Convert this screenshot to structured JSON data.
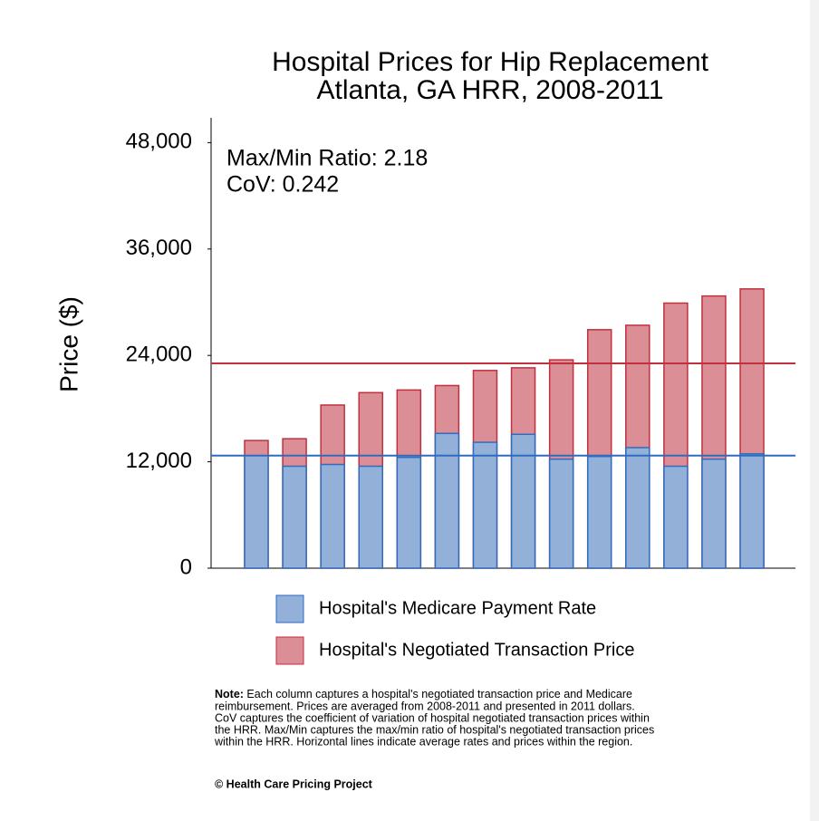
{
  "chart_data": {
    "type": "bar",
    "title": [
      "Hospital Prices for Hip Replacement",
      "Atlanta, GA HRR, 2008-2011"
    ],
    "ylabel": "Price ($)",
    "annotations": [
      "Max/Min Ratio: 2.18",
      "CoV: 0.242"
    ],
    "categories": [
      null,
      null,
      null,
      null,
      null,
      null,
      null,
      null,
      null,
      null,
      null,
      null,
      null,
      null
    ],
    "series": [
      {
        "name": "Hospital's Medicare Payment Rate",
        "color": "#92b0d8",
        "edge": "#2e6cc0",
        "values": [
          12700,
          11500,
          11700,
          11500,
          12500,
          15200,
          14200,
          15100,
          12300,
          12600,
          13600,
          11500,
          12300,
          12900
        ],
        "average": 12700
      },
      {
        "name": "Hospital's Negotiated Transaction Price",
        "color": "#dc8e96",
        "edge": "#c0303d",
        "values": [
          14400,
          14600,
          18400,
          19800,
          20100,
          20600,
          22300,
          22600,
          23500,
          26900,
          27400,
          29900,
          30700,
          31500
        ],
        "average": 23100
      }
    ],
    "ylim": [
      0,
      50800
    ],
    "yticks": [
      0,
      {
        "value": 12000,
        "label": "12,000"
      },
      {
        "value": 24000,
        "label": "24,000"
      },
      {
        "value": 36000,
        "label": "36,000"
      },
      {
        "value": 48000,
        "label": "48,000"
      }
    ],
    "note_label": "Note:",
    "note_lines": [
      " Each column captures a hospital's negotiated transaction price and Medicare",
      "reimbursement. Prices are averaged from 2008-2011 and presented in 2011 dollars.",
      "CoV captures the coefficient of variation of hospital negotiated transaction prices within",
      "the HRR. Max/Min captures the max/min ratio of hospital's negotiated transaction prices",
      "within the HRR. Horizontal lines indicate average rates and prices within the region."
    ],
    "source": "© Health Care Pricing Project"
  }
}
